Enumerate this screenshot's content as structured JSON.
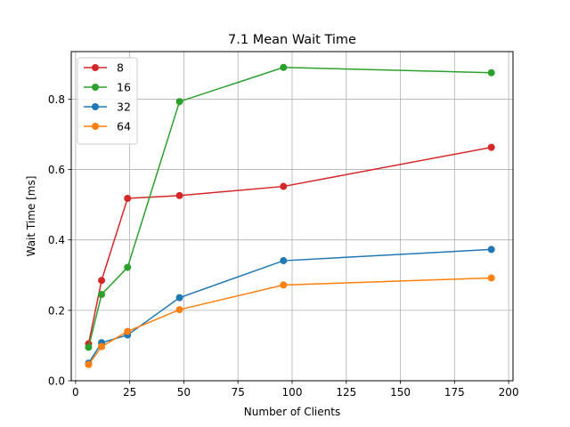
{
  "chart_data": {
    "type": "line",
    "title": "7.1 Mean Wait Time",
    "xlabel": "Number of Clients",
    "ylabel": "Wait Time [ms]",
    "xlim": [
      -2,
      202
    ],
    "ylim": [
      0,
      0.935
    ],
    "xticks": [
      0,
      25,
      50,
      75,
      100,
      125,
      150,
      175,
      200
    ],
    "yticks": [
      0.0,
      0.2,
      0.4,
      0.6,
      0.8
    ],
    "ytick_labels": [
      "0.0",
      "0.2",
      "0.4",
      "0.6",
      "0.8"
    ],
    "grid": true,
    "legend_position": "upper-left",
    "x": [
      6,
      12,
      24,
      48,
      96,
      192
    ],
    "series": [
      {
        "name": "8",
        "color": "#d62728",
        "values": [
          0.105,
          0.285,
          0.518,
          0.526,
          0.552,
          0.663
        ]
      },
      {
        "name": "16",
        "color": "#2ca02c",
        "values": [
          0.095,
          0.245,
          0.322,
          0.793,
          0.89,
          0.875
        ]
      },
      {
        "name": "32",
        "color": "#1f77b4",
        "values": [
          0.05,
          0.108,
          0.13,
          0.236,
          0.341,
          0.373
        ]
      },
      {
        "name": "64",
        "color": "#ff7f0e",
        "values": [
          0.046,
          0.097,
          0.14,
          0.202,
          0.272,
          0.292
        ]
      }
    ]
  }
}
